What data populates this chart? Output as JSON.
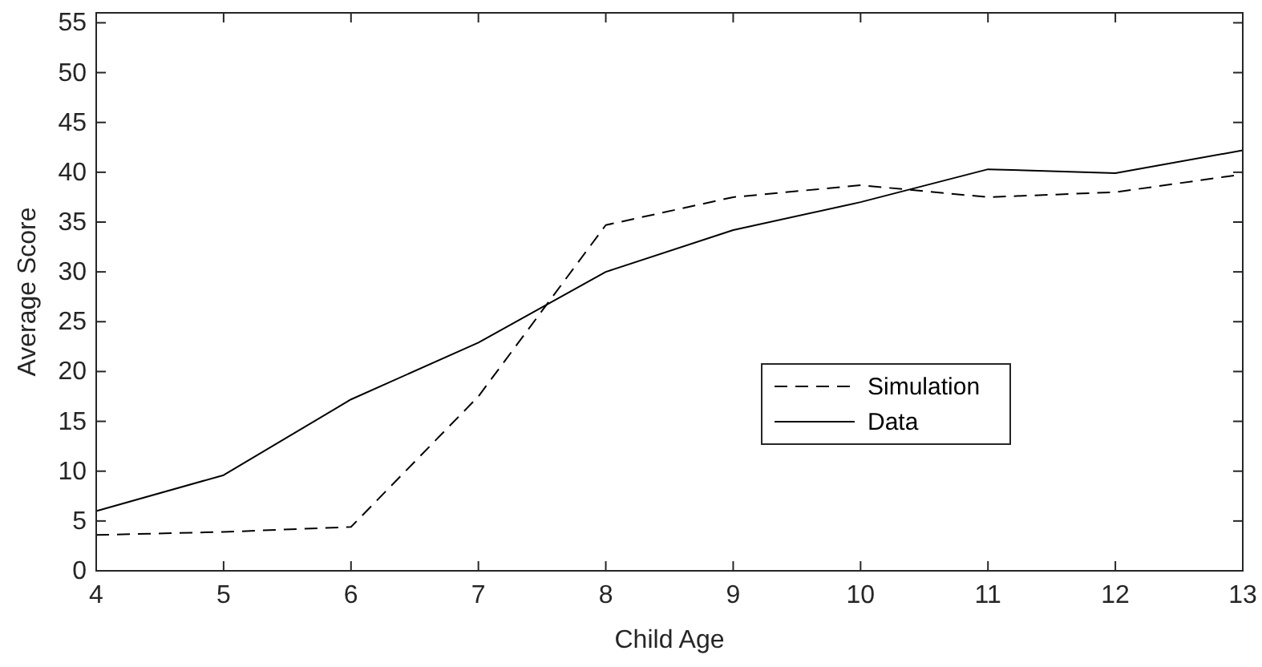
{
  "chart_data": {
    "type": "line",
    "xlabel": "Child Age",
    "ylabel": "Average Score",
    "x": [
      4,
      5,
      6,
      7,
      8,
      9,
      10,
      11,
      12,
      13
    ],
    "series": [
      {
        "name": "Simulation",
        "color": "#000000",
        "line_style": "dashed",
        "values": [
          3.6,
          3.9,
          4.4,
          17.5,
          34.7,
          37.5,
          38.7,
          37.5,
          38,
          39.8
        ]
      },
      {
        "name": "Data",
        "color": "#000000",
        "line_style": "solid",
        "values": [
          6,
          9.6,
          17.2,
          22.9,
          30,
          34.2,
          37,
          40.3,
          39.9,
          42.2
        ]
      }
    ],
    "xlim": [
      4,
      13
    ],
    "xticks": [
      4,
      5,
      6,
      7,
      8,
      9,
      10,
      11,
      12,
      13
    ],
    "ylim": [
      0,
      56
    ],
    "yticks": [
      0,
      5,
      10,
      15,
      20,
      25,
      30,
      35,
      40,
      45,
      50,
      55
    ],
    "grid": false,
    "legend": "right"
  }
}
